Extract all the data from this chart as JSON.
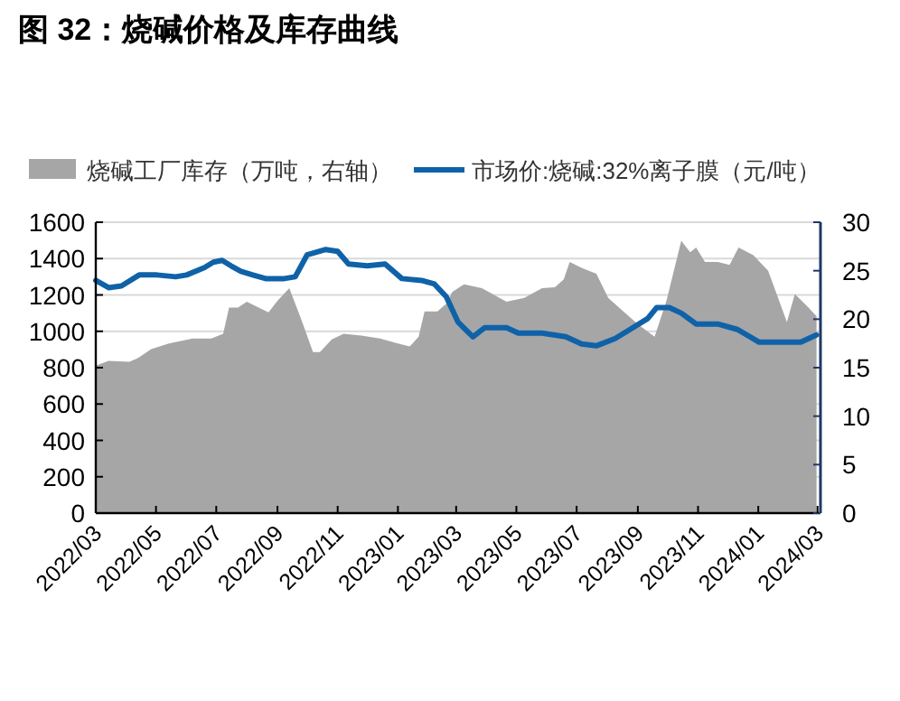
{
  "chart_data": {
    "type": "line",
    "title": "图 32：烧碱价格及库存曲线",
    "xlim": [
      "2022-03-01",
      "2024-03-04"
    ],
    "xticks": [
      {
        "value": "2022-03",
        "label": "2022/03"
      },
      {
        "value": "2022-05",
        "label": "2022/05"
      },
      {
        "value": "2022-07",
        "label": "2022/07"
      },
      {
        "value": "2022-09",
        "label": "2022/09"
      },
      {
        "value": "2022-11",
        "label": "2022/11"
      },
      {
        "value": "2023-01",
        "label": "2023/01"
      },
      {
        "value": "2023-03",
        "label": "2023/03"
      },
      {
        "value": "2023-05",
        "label": "2023/05"
      },
      {
        "value": "2023-07",
        "label": "2023/07"
      },
      {
        "value": "2023-09",
        "label": "2023/09"
      },
      {
        "value": "2023-11",
        "label": "2023/11"
      },
      {
        "value": "2024-01",
        "label": "2024/01"
      },
      {
        "value": "2024-03",
        "label": "2024/03"
      }
    ],
    "ylim": [
      0,
      1600
    ],
    "yticks": [
      0,
      200,
      400,
      600,
      800,
      1000,
      1200,
      1400,
      1600
    ],
    "y2lim": [
      0,
      30
    ],
    "y2ticks": [
      0,
      5,
      10,
      15,
      20,
      25,
      30
    ],
    "grid": "y",
    "legend": "top",
    "series": [
      {
        "name": "烧碱工厂库存（万吨，右轴）",
        "type": "area",
        "axis": "y2",
        "color": "#a6a6a6",
        "x": [
          "2022-03-01",
          "2022-03-14",
          "2022-04-04",
          "2022-04-13",
          "2022-04-26",
          "2022-05-14",
          "2022-06-07",
          "2022-06-26",
          "2022-07-08",
          "2022-07-14",
          "2022-07-23",
          "2022-08-01",
          "2022-08-13",
          "2022-08-23",
          "2022-09-01",
          "2022-09-13",
          "2022-09-25",
          "2022-10-07",
          "2022-10-14",
          "2022-10-26",
          "2022-11-07",
          "2022-11-25",
          "2022-12-14",
          "2023-01-01",
          "2023-01-13",
          "2023-01-22",
          "2023-01-28",
          "2023-02-10",
          "2023-02-19",
          "2023-02-25",
          "2023-03-09",
          "2023-03-27",
          "2023-04-21",
          "2023-05-09",
          "2023-05-27",
          "2023-06-09",
          "2023-06-18",
          "2023-06-24",
          "2023-07-06",
          "2023-07-21",
          "2023-08-02",
          "2023-08-15",
          "2023-09-02",
          "2023-09-18",
          "2023-09-30",
          "2023-10-15",
          "2023-10-24",
          "2023-10-30",
          "2023-11-08",
          "2023-11-21",
          "2023-12-03",
          "2023-12-12",
          "2023-12-27",
          "2024-01-11",
          "2024-01-30",
          "2024-02-07",
          "2024-02-20",
          "2024-02-29"
        ],
        "values": [
          15.2,
          15.7,
          15.6,
          16.0,
          16.9,
          17.5,
          18.0,
          18.0,
          18.5,
          21.2,
          21.2,
          21.8,
          21.2,
          20.7,
          21.9,
          23.2,
          20.0,
          16.6,
          16.6,
          17.9,
          18.5,
          18.3,
          18.0,
          17.5,
          17.2,
          18.2,
          20.8,
          20.8,
          21.6,
          22.8,
          23.6,
          23.2,
          21.8,
          22.2,
          23.2,
          23.3,
          24.1,
          25.9,
          25.3,
          24.7,
          22.2,
          21.0,
          19.4,
          18.2,
          21.9,
          28.1,
          26.9,
          27.4,
          25.9,
          25.9,
          25.6,
          27.4,
          26.6,
          25.0,
          19.7,
          22.6,
          21.3,
          20.3
        ]
      },
      {
        "name": "市场价:烧碱:32%离子膜（元/吨）",
        "color": "#0f62a8",
        "x": [
          "2022-03-01",
          "2022-03-14",
          "2022-03-27",
          "2022-04-14",
          "2022-05-02",
          "2022-05-21",
          "2022-06-01",
          "2022-06-19",
          "2022-06-28",
          "2022-07-07",
          "2022-07-16",
          "2022-07-26",
          "2022-08-07",
          "2022-08-20",
          "2022-09-08",
          "2022-09-19",
          "2022-10-01",
          "2022-10-20",
          "2022-11-01",
          "2022-11-12",
          "2022-12-01",
          "2022-12-19",
          "2023-01-05",
          "2023-01-25",
          "2023-02-07",
          "2023-02-19",
          "2023-03-03",
          "2023-03-18",
          "2023-03-30",
          "2023-04-21",
          "2023-05-03",
          "2023-05-27",
          "2023-06-20",
          "2023-07-06",
          "2023-07-21",
          "2023-08-09",
          "2023-08-27",
          "2023-09-11",
          "2023-09-20",
          "2023-10-03",
          "2023-10-15",
          "2023-10-30",
          "2023-11-21",
          "2023-12-11",
          "2024-01-02",
          "2024-01-26",
          "2024-02-13",
          "2024-02-29"
        ],
        "values": [
          1280,
          1240,
          1250,
          1310,
          1310,
          1300,
          1310,
          1350,
          1380,
          1390,
          1360,
          1330,
          1310,
          1290,
          1290,
          1300,
          1420,
          1450,
          1440,
          1370,
          1360,
          1370,
          1290,
          1280,
          1260,
          1190,
          1050,
          970,
          1020,
          1020,
          990,
          990,
          970,
          930,
          920,
          960,
          1020,
          1070,
          1130,
          1130,
          1100,
          1040,
          1040,
          1010,
          940,
          940,
          940,
          980
        ]
      }
    ]
  }
}
